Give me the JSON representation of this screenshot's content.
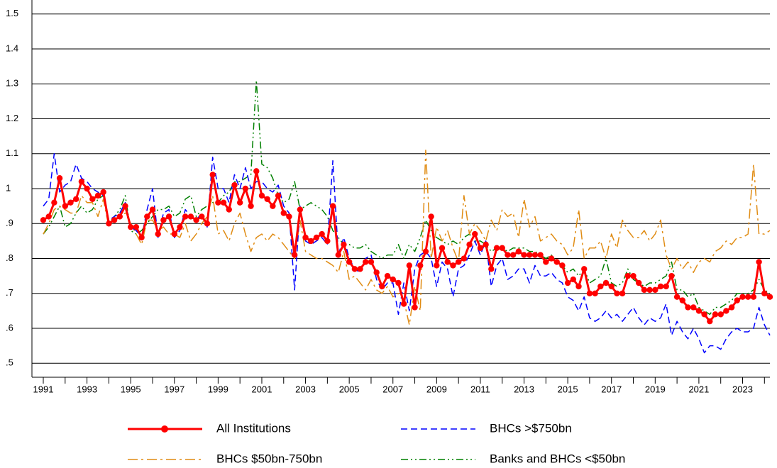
{
  "chart_data": {
    "type": "line",
    "categories": [
      "1991",
      null,
      null,
      null,
      null,
      null,
      null,
      null,
      "1993",
      null,
      null,
      null,
      null,
      null,
      null,
      null,
      "1995",
      null,
      null,
      null,
      null,
      null,
      null,
      null,
      "1997",
      null,
      null,
      null,
      null,
      null,
      null,
      null,
      "1999",
      null,
      null,
      null,
      null,
      null,
      null,
      null,
      "2001",
      null,
      null,
      null,
      null,
      null,
      null,
      null,
      "2003",
      null,
      null,
      null,
      null,
      null,
      null,
      null,
      "2005",
      null,
      null,
      null,
      null,
      null,
      null,
      null,
      "2007",
      null,
      null,
      null,
      null,
      null,
      null,
      null,
      "2009",
      null,
      null,
      null,
      null,
      null,
      null,
      null,
      "2011",
      null,
      null,
      null,
      null,
      null,
      null,
      null,
      "2013",
      null,
      null,
      null,
      null,
      null,
      null,
      null,
      "2015",
      null,
      null,
      null,
      null,
      null,
      null,
      null,
      "2017",
      null,
      null,
      null,
      null,
      null,
      null,
      null,
      "2019",
      null,
      null,
      null,
      null,
      null,
      null,
      null,
      "2021",
      null,
      null,
      null,
      null,
      null,
      null,
      null,
      "2023",
      null,
      null,
      null,
      null,
      null
    ],
    "ylim": [
      0.46,
      1.54
    ],
    "yticks": [
      {
        "value": 0.5,
        "label": ".5"
      },
      {
        "value": 0.6,
        "label": ".6"
      },
      {
        "value": 0.7,
        "label": ".7"
      },
      {
        "value": 0.8,
        "label": ".8"
      },
      {
        "value": 0.9,
        "label": ".9"
      },
      1,
      1.1,
      1.2,
      1.3,
      1.4,
      1.5
    ],
    "grid": true,
    "series": [
      {
        "name": "All Institutions",
        "color": "#ff0000",
        "linestyle": "solid",
        "marker": "circle",
        "values": [
          0.91,
          0.92,
          0.96,
          1.03,
          0.95,
          0.96,
          0.97,
          1.02,
          1.0,
          0.97,
          0.98,
          0.99,
          0.9,
          0.91,
          0.92,
          0.95,
          0.89,
          0.89,
          0.86,
          0.92,
          0.94,
          0.87,
          0.91,
          0.92,
          0.87,
          0.89,
          0.92,
          0.92,
          0.91,
          0.92,
          0.9,
          1.04,
          0.96,
          0.96,
          0.94,
          1.01,
          0.96,
          1.0,
          0.95,
          1.05,
          0.98,
          0.97,
          0.95,
          0.98,
          0.93,
          0.92,
          0.81,
          0.94,
          0.86,
          0.85,
          0.86,
          0.87,
          0.85,
          0.95,
          0.81,
          0.84,
          0.79,
          0.77,
          0.77,
          0.79,
          0.79,
          0.76,
          0.72,
          0.75,
          0.74,
          0.73,
          0.67,
          0.78,
          0.66,
          0.78,
          0.82,
          0.92,
          0.78,
          0.83,
          0.79,
          0.78,
          0.79,
          0.8,
          0.84,
          0.87,
          0.83,
          0.84,
          0.77,
          0.83,
          0.83,
          0.81,
          0.81,
          0.82,
          0.81,
          0.81,
          0.81,
          0.81,
          0.79,
          0.8,
          0.79,
          0.78,
          0.73,
          0.74,
          0.72,
          0.77,
          0.7,
          0.7,
          0.72,
          0.73,
          0.72,
          0.7,
          0.7,
          0.75,
          0.75,
          0.73,
          0.71,
          0.71,
          0.71,
          0.72,
          0.72,
          0.75,
          0.69,
          0.68,
          0.66,
          0.66,
          0.65,
          0.64,
          0.62,
          0.64,
          0.64,
          0.65,
          0.66,
          0.68,
          0.69,
          0.69,
          0.69,
          0.79,
          0.7,
          0.69
        ]
      },
      {
        "name": "BHCs >$750bn",
        "color": "#0000ff",
        "linestyle": "dashed",
        "values": [
          0.95,
          0.97,
          1.1,
          0.99,
          1.01,
          1.02,
          1.07,
          1.03,
          1.02,
          1.0,
          0.99,
          0.98,
          0.91,
          0.92,
          0.93,
          0.96,
          0.89,
          0.88,
          0.86,
          0.94,
          1.0,
          0.86,
          0.93,
          0.94,
          0.86,
          0.88,
          0.94,
          0.92,
          0.91,
          0.93,
          0.89,
          1.09,
          1.0,
          1.0,
          0.96,
          1.04,
          1.0,
          1.06,
          1.0,
          1.02,
          1.02,
          1.0,
          0.99,
          1.01,
          0.95,
          0.93,
          0.71,
          0.95,
          0.85,
          0.84,
          0.85,
          0.86,
          0.84,
          1.08,
          0.81,
          0.86,
          0.8,
          0.77,
          0.76,
          0.8,
          0.81,
          0.74,
          0.71,
          0.73,
          0.73,
          0.64,
          0.73,
          0.65,
          0.77,
          0.81,
          0.82,
          0.8,
          0.72,
          0.79,
          0.77,
          0.69,
          0.77,
          0.78,
          0.81,
          0.85,
          0.81,
          0.85,
          0.72,
          0.78,
          0.8,
          0.74,
          0.75,
          0.77,
          0.77,
          0.73,
          0.78,
          0.75,
          0.75,
          0.76,
          0.74,
          0.73,
          0.69,
          0.68,
          0.65,
          0.69,
          0.63,
          0.62,
          0.63,
          0.65,
          0.63,
          0.64,
          0.62,
          0.64,
          0.66,
          0.63,
          0.61,
          0.63,
          0.62,
          0.63,
          0.67,
          0.58,
          0.62,
          0.59,
          0.57,
          0.6,
          0.57,
          0.53,
          0.55,
          0.55,
          0.54,
          0.57,
          0.59,
          0.6,
          0.59,
          0.59,
          0.6,
          0.66,
          0.61,
          0.58
        ]
      },
      {
        "name": "BHCs $50bn-750bn",
        "color": "#e08c14",
        "linestyle": "dashdot",
        "values": [
          0.87,
          0.9,
          0.94,
          0.95,
          0.94,
          0.93,
          0.93,
          0.98,
          0.96,
          0.96,
          0.92,
          0.97,
          0.89,
          0.91,
          0.92,
          0.93,
          0.9,
          0.87,
          0.84,
          0.91,
          0.91,
          0.88,
          0.89,
          0.87,
          0.87,
          0.86,
          0.9,
          0.85,
          0.87,
          0.9,
          0.92,
          0.98,
          0.87,
          0.88,
          0.85,
          0.9,
          0.93,
          0.87,
          0.82,
          0.86,
          0.87,
          0.85,
          0.87,
          0.86,
          0.84,
          0.82,
          0.8,
          0.91,
          0.82,
          0.81,
          0.8,
          0.8,
          0.79,
          0.78,
          0.76,
          0.82,
          0.74,
          0.75,
          0.73,
          0.71,
          0.74,
          0.71,
          0.7,
          0.72,
          0.69,
          0.7,
          0.68,
          0.61,
          0.72,
          0.65,
          1.11,
          0.8,
          0.89,
          0.85,
          0.88,
          0.83,
          0.79,
          0.98,
          0.87,
          0.9,
          0.88,
          0.85,
          0.91,
          0.88,
          0.94,
          0.92,
          0.93,
          0.86,
          0.97,
          0.89,
          0.92,
          0.85,
          0.86,
          0.87,
          0.85,
          0.84,
          0.81,
          0.83,
          0.94,
          0.8,
          0.83,
          0.83,
          0.85,
          0.8,
          0.87,
          0.83,
          0.91,
          0.88,
          0.86,
          0.86,
          0.88,
          0.85,
          0.87,
          0.91,
          0.81,
          0.77,
          0.8,
          0.77,
          0.79,
          0.76,
          0.79,
          0.8,
          0.79,
          0.82,
          0.83,
          0.85,
          0.84,
          0.86,
          0.86,
          0.87,
          1.07,
          0.87,
          0.87,
          0.88
        ]
      },
      {
        "name": "Banks and BHCs <$50bn",
        "color": "#008000",
        "linestyle": "dashdotdot",
        "values": [
          0.87,
          0.89,
          0.92,
          0.95,
          0.89,
          0.9,
          0.93,
          0.95,
          0.93,
          0.94,
          0.97,
          0.98,
          0.9,
          0.92,
          0.94,
          0.98,
          0.88,
          0.87,
          0.88,
          0.9,
          0.92,
          0.94,
          0.94,
          0.95,
          0.92,
          0.93,
          0.97,
          0.98,
          0.92,
          0.94,
          0.95,
          0.96,
          0.96,
          0.98,
          0.99,
          1.02,
          1.02,
          1.03,
          1.04,
          1.31,
          1.07,
          1.06,
          1.03,
          0.98,
          0.96,
          0.97,
          1.02,
          0.94,
          0.95,
          0.96,
          0.95,
          0.94,
          0.92,
          0.88,
          0.86,
          0.84,
          0.84,
          0.83,
          0.83,
          0.84,
          0.82,
          0.81,
          0.8,
          0.81,
          0.81,
          0.84,
          0.8,
          0.84,
          0.82,
          0.86,
          0.91,
          0.88,
          0.86,
          0.85,
          0.84,
          0.85,
          0.84,
          0.86,
          0.87,
          0.85,
          0.85,
          0.84,
          0.82,
          0.83,
          0.83,
          0.82,
          0.83,
          0.83,
          0.83,
          0.82,
          0.82,
          0.81,
          0.8,
          0.81,
          0.79,
          0.78,
          0.76,
          0.77,
          0.75,
          0.77,
          0.73,
          0.74,
          0.75,
          0.8,
          0.73,
          0.72,
          0.73,
          0.77,
          0.74,
          0.73,
          0.72,
          0.73,
          0.73,
          0.74,
          0.75,
          0.79,
          0.71,
          0.71,
          0.69,
          0.7,
          0.66,
          0.65,
          0.64,
          0.66,
          0.66,
          0.67,
          0.68,
          0.7,
          0.7,
          0.7,
          0.71,
          0.74,
          0.71,
          0.7
        ]
      }
    ]
  }
}
